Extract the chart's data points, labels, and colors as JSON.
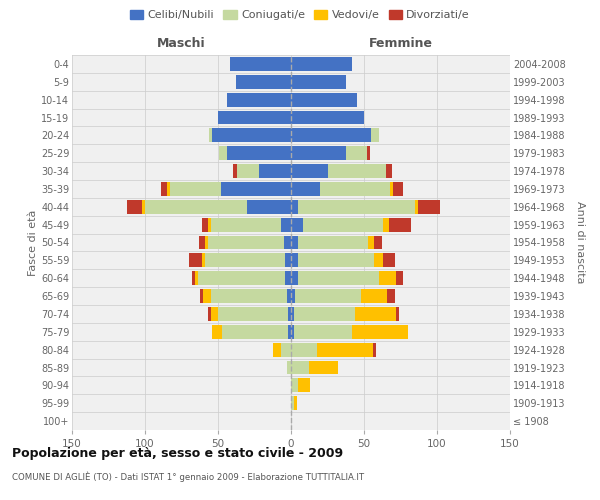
{
  "age_groups": [
    "0-4",
    "5-9",
    "10-14",
    "15-19",
    "20-24",
    "25-29",
    "30-34",
    "35-39",
    "40-44",
    "45-49",
    "50-54",
    "55-59",
    "60-64",
    "65-69",
    "70-74",
    "75-79",
    "80-84",
    "85-89",
    "90-94",
    "95-99",
    "100+"
  ],
  "birth_years": [
    "2004-2008",
    "1999-2003",
    "1994-1998",
    "1989-1993",
    "1984-1988",
    "1979-1983",
    "1974-1978",
    "1969-1973",
    "1964-1968",
    "1959-1963",
    "1954-1958",
    "1949-1953",
    "1944-1948",
    "1939-1943",
    "1934-1938",
    "1929-1933",
    "1924-1928",
    "1919-1923",
    "1914-1918",
    "1909-1913",
    "≤ 1908"
  ],
  "maschi": {
    "celibi": [
      42,
      38,
      44,
      50,
      54,
      44,
      22,
      48,
      30,
      7,
      5,
      4,
      4,
      3,
      2,
      2,
      0,
      0,
      0,
      0,
      0
    ],
    "coniugati": [
      0,
      0,
      0,
      0,
      2,
      5,
      15,
      35,
      70,
      48,
      52,
      55,
      60,
      52,
      48,
      45,
      7,
      3,
      0,
      0,
      0
    ],
    "vedovi": [
      0,
      0,
      0,
      0,
      0,
      0,
      0,
      2,
      2,
      2,
      2,
      2,
      2,
      5,
      5,
      7,
      5,
      0,
      0,
      0,
      0
    ],
    "divorziati": [
      0,
      0,
      0,
      0,
      0,
      0,
      3,
      4,
      10,
      4,
      4,
      9,
      2,
      2,
      2,
      0,
      0,
      0,
      0,
      0,
      0
    ]
  },
  "femmine": {
    "nubili": [
      42,
      38,
      45,
      50,
      55,
      38,
      25,
      20,
      5,
      8,
      5,
      5,
      5,
      3,
      2,
      2,
      0,
      0,
      0,
      0,
      0
    ],
    "coniugate": [
      0,
      0,
      0,
      0,
      5,
      14,
      40,
      48,
      80,
      55,
      48,
      52,
      55,
      45,
      42,
      40,
      18,
      12,
      5,
      2,
      0
    ],
    "vedove": [
      0,
      0,
      0,
      0,
      0,
      0,
      0,
      2,
      2,
      4,
      4,
      6,
      12,
      18,
      28,
      38,
      38,
      20,
      8,
      2,
      0
    ],
    "divorziate": [
      0,
      0,
      0,
      0,
      0,
      2,
      4,
      7,
      15,
      15,
      5,
      8,
      5,
      5,
      2,
      0,
      2,
      0,
      0,
      0,
      0
    ]
  },
  "colors": {
    "celibi": "#4472c4",
    "coniugati": "#c5d9a0",
    "vedovi": "#ffc000",
    "divorziati": "#c0392b"
  },
  "xlim": 150,
  "title": "Popolazione per età, sesso e stato civile - 2009",
  "subtitle": "COMUNE DI AGLIÈ (TO) - Dati ISTAT 1° gennaio 2009 - Elaborazione TUTTITALIA.IT",
  "ylabel_left": "Fasce di età",
  "ylabel_right": "Anni di nascita",
  "xlabel_left": "Maschi",
  "xlabel_right": "Femmine",
  "legend_labels": [
    "Celibi/Nubili",
    "Coniugati/e",
    "Vedovi/e",
    "Divorziati/e"
  ],
  "bg_color": "#f0f0f0",
  "grid_color": "#cccccc",
  "bar_height": 0.78
}
